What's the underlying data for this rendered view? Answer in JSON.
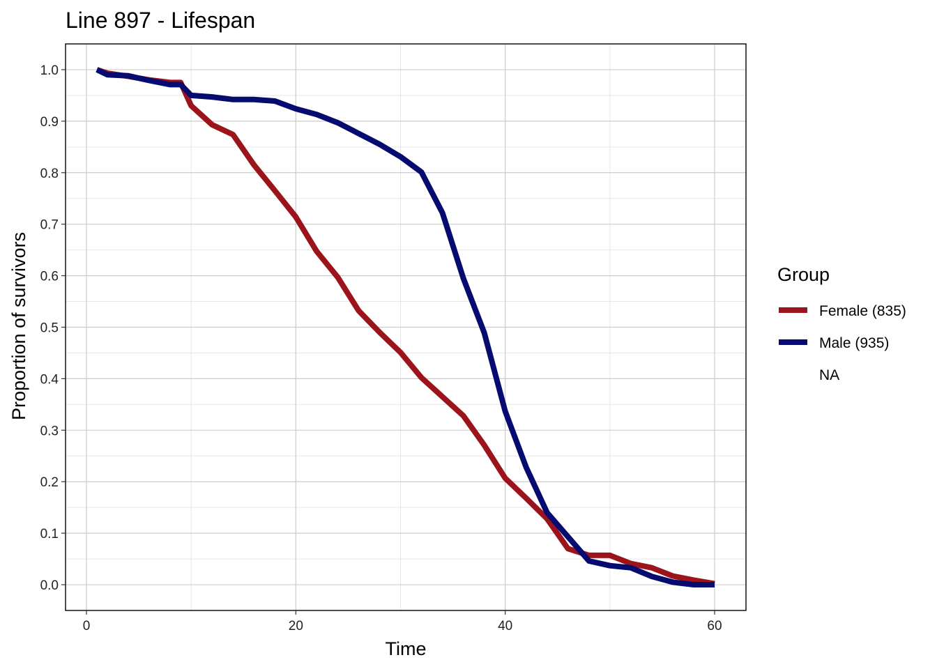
{
  "chart_data": {
    "type": "line",
    "title": "Line 897 - Lifespan",
    "xlabel": "Time",
    "ylabel": "Proportion of survivors",
    "xlim": [
      -2,
      63
    ],
    "ylim": [
      -0.05,
      1.05
    ],
    "x_ticks": [
      0,
      20,
      40,
      60
    ],
    "x_tick_labels": [
      "0",
      "20",
      "40",
      "60"
    ],
    "y_ticks": [
      0.0,
      0.1,
      0.2,
      0.3,
      0.4,
      0.5,
      0.6,
      0.7,
      0.8,
      0.9,
      1.0
    ],
    "y_tick_labels": [
      "0.0",
      "0.1",
      "0.2",
      "0.3",
      "0.4",
      "0.5",
      "0.6",
      "0.7",
      "0.8",
      "0.9",
      "1.0"
    ],
    "grid": true,
    "legend": {
      "title": "Group",
      "position": "right",
      "entries": [
        "Female (835)",
        "Male (935)",
        "NA"
      ]
    },
    "series": [
      {
        "name": "Female (835)",
        "color": "#9b141b",
        "points": [
          [
            1,
            1.0
          ],
          [
            2,
            0.993
          ],
          [
            4,
            0.987
          ],
          [
            6,
            0.98
          ],
          [
            8,
            0.975
          ],
          [
            9,
            0.975
          ],
          [
            10,
            0.93
          ],
          [
            12,
            0.893
          ],
          [
            14,
            0.874
          ],
          [
            16,
            0.815
          ],
          [
            18,
            0.765
          ],
          [
            20,
            0.714
          ],
          [
            22,
            0.647
          ],
          [
            24,
            0.597
          ],
          [
            26,
            0.532
          ],
          [
            28,
            0.49
          ],
          [
            30,
            0.451
          ],
          [
            32,
            0.402
          ],
          [
            34,
            0.365
          ],
          [
            36,
            0.328
          ],
          [
            38,
            0.271
          ],
          [
            40,
            0.207
          ],
          [
            42,
            0.168
          ],
          [
            44,
            0.128
          ],
          [
            46,
            0.07
          ],
          [
            48,
            0.057
          ],
          [
            50,
            0.057
          ],
          [
            52,
            0.041
          ],
          [
            54,
            0.033
          ],
          [
            56,
            0.017
          ],
          [
            58,
            0.009
          ],
          [
            60,
            0.002
          ]
        ]
      },
      {
        "name": "Male (935)",
        "color": "#060b70",
        "points": [
          [
            1,
            1.0
          ],
          [
            2,
            0.99
          ],
          [
            4,
            0.988
          ],
          [
            6,
            0.979
          ],
          [
            8,
            0.971
          ],
          [
            9,
            0.971
          ],
          [
            10,
            0.95
          ],
          [
            12,
            0.947
          ],
          [
            14,
            0.942
          ],
          [
            16,
            0.942
          ],
          [
            18,
            0.939
          ],
          [
            20,
            0.924
          ],
          [
            22,
            0.913
          ],
          [
            24,
            0.897
          ],
          [
            26,
            0.876
          ],
          [
            28,
            0.855
          ],
          [
            30,
            0.831
          ],
          [
            32,
            0.801
          ],
          [
            34,
            0.722
          ],
          [
            36,
            0.595
          ],
          [
            38,
            0.489
          ],
          [
            40,
            0.337
          ],
          [
            42,
            0.228
          ],
          [
            44,
            0.14
          ],
          [
            46,
            0.093
          ],
          [
            48,
            0.046
          ],
          [
            50,
            0.037
          ],
          [
            52,
            0.033
          ],
          [
            54,
            0.016
          ],
          [
            56,
            0.005
          ],
          [
            58,
            0.0
          ],
          [
            60,
            0.0
          ]
        ]
      }
    ]
  }
}
